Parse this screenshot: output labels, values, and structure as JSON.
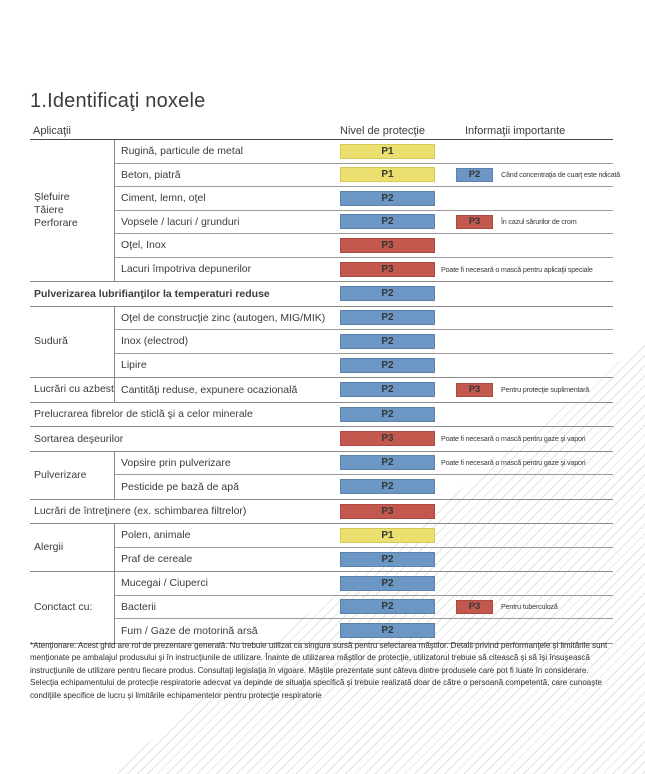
{
  "page": {
    "title": "1.Identificaţi noxele"
  },
  "header": {
    "col_applications": "Aplicaţii",
    "col_protection": "Nivel de protecţie",
    "col_info": "Informaţii importante"
  },
  "colors": {
    "p1": "#EADF6F",
    "p1_border": "#d6ca55",
    "p2": "#6C96C4",
    "p2_border": "#5a82ad",
    "p3": "#C3584E",
    "p3_border": "#ab4a41",
    "hatch": "#e3e3e3"
  },
  "sections": [
    {
      "type": "group",
      "label": "Şlefuire\nTăiere\nPerforare",
      "rows": [
        {
          "label": "Rugină, particule de metal",
          "chip": "P1"
        },
        {
          "label": "Beton, piatră",
          "chip": "P1",
          "chip2": "P2",
          "info": "Când concentraţia de cuarţ este ridicată"
        },
        {
          "label": "Ciment, lemn, oţel",
          "chip": "P2"
        },
        {
          "label": "Vopsele / lacuri / grunduri",
          "chip": "P2",
          "chip2": "P3",
          "info": "În cazul sărurilor de crom"
        },
        {
          "label": "Oţel, Inox",
          "chip": "P3"
        },
        {
          "label": "Lacuri împotriva depunerilor",
          "chip": "P3",
          "info": "Poate fi necesară o mască pentru aplicaţii speciale"
        }
      ]
    },
    {
      "type": "full",
      "label": "Pulverizarea lubrifianţilor la temperaturi reduse",
      "bold": true,
      "chip": "P2"
    },
    {
      "type": "group",
      "label": "Sudură",
      "rows": [
        {
          "label": "Oţel de construcţie zinc (autogen, MIG/MIK)",
          "chip": "P2"
        },
        {
          "label": "Inox (electrod)",
          "chip": "P2"
        },
        {
          "label": "Lipire",
          "chip": "P2"
        }
      ]
    },
    {
      "type": "group",
      "label": "Lucrări cu azbest",
      "rows": [
        {
          "label": "Cantităţi reduse, expunere ocazională",
          "chip": "P2",
          "chip2": "P3",
          "info": "Pentru protecţie suplimentară"
        }
      ]
    },
    {
      "type": "full",
      "label": "Prelucrarea fibrelor de sticlă şi a celor minerale",
      "chip": "P2"
    },
    {
      "type": "full",
      "label": "Sortarea deşeurilor",
      "chip": "P3",
      "info": "Poate fi necesară o mască pentru gaze şi vapori"
    },
    {
      "type": "group",
      "label": "Pulverizare",
      "rows": [
        {
          "label": "Vopsire prin pulverizare",
          "chip": "P2",
          "info": "Poate fi necesară o mască pentru gaze şi vapori"
        },
        {
          "label": "Pesticide pe bază de apă",
          "chip": "P2"
        }
      ]
    },
    {
      "type": "full",
      "label": "Lucrări de întreţinere (ex. schimbarea filtrelor)",
      "chip": "P3"
    },
    {
      "type": "group",
      "label": "Alergii",
      "rows": [
        {
          "label": "Polen, animale",
          "chip": "P1"
        },
        {
          "label": "Praf de cereale",
          "chip": "P2"
        }
      ]
    },
    {
      "type": "group",
      "label": "Conctact cu:",
      "rows": [
        {
          "label": "Mucegai / Ciuperci",
          "chip": "P2"
        },
        {
          "label": "Bacterii",
          "chip": "P2",
          "chip2": "P3",
          "info": "Pentru tuberculoză"
        },
        {
          "label": "Fum / Gaze de motorină arsă",
          "chip": "P2"
        }
      ]
    }
  ],
  "footnote": "*Atenţionare: Acest ghid are rol de prezentare generală. Nu trebuie utilizat ca singura sursă pentru selectarea măştilor. Detalii privind performanţele şi limitările sunt menţionate pe ambalajul produsului şi în instrucţiunile de utilizare. Înainte de utilizarea măştilor de protecţie, utilizatorul trebuie să citească şi să îşi însuşească instrucţiunile de utilizare pentru fiecare produs. Consultaţi legislaţia în vigoare. Măştile prezentate sunt câteva dintre produsele care pot fi luate în considerare. Selecţia echipamentului de protecţie respiratorie adecvat va depinde de situaţia specifică şi trebuie realizată doar de către o persoană competentă, care cunoaşte condiţiile specifice de lucru şi limitările echipamentelor pentru protecţie respiratorie"
}
